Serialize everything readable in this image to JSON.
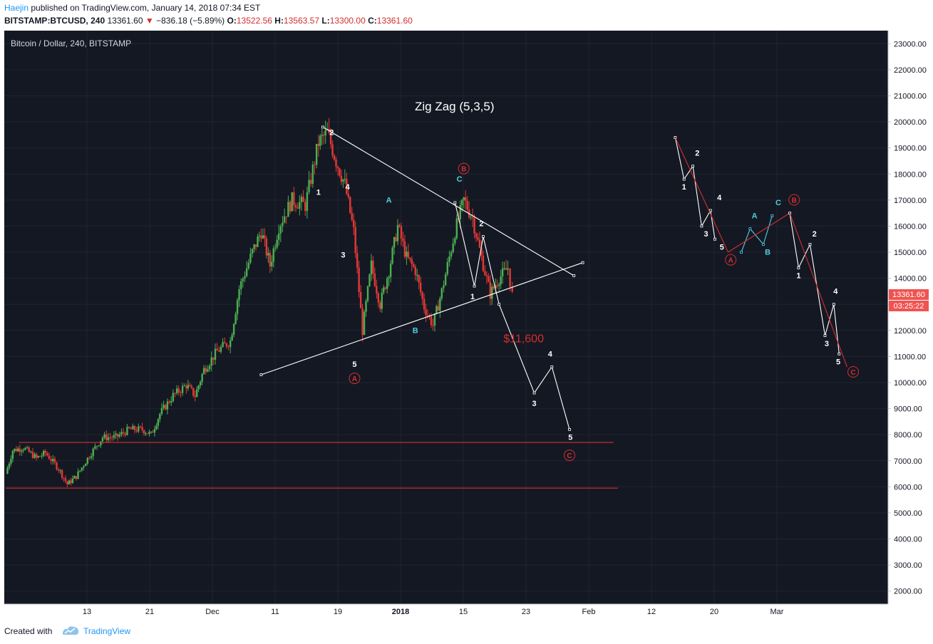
{
  "header": {
    "author": "Haejin",
    "published": "published on TradingView.com, January 14, 2018 07:34 EST",
    "symbol": "BITSTAMP:BTCUSD, 240",
    "last": "13361.60",
    "change": "−836.18 (−5.89%)",
    "open_label": "O:",
    "open": "13522.56",
    "high_label": "H:",
    "high": "13563.57",
    "low_label": "L:",
    "low": "13300.00",
    "close_label": "C:",
    "close": "13361.60"
  },
  "footer": {
    "created": "Created with",
    "brand": "TradingView"
  },
  "colors": {
    "background": "#141823",
    "up": "#4caf50",
    "down": "#e53935",
    "grid": "#1f2430",
    "wave_white": "#ffffff",
    "wave_cyan": "#4dd0e1",
    "wave_red": "#d32f2f",
    "price_badge": "#ef5350",
    "axis_text": "#131722",
    "link": "#2196f3"
  },
  "chart_data": {
    "type": "candlestick",
    "title": "Bitcoin / Dollar, 240, BITSTAMP",
    "annotation_title": "Zig Zag (5,3,5)",
    "x_axis_ticks": [
      "13",
      "21",
      "Dec",
      "11",
      "19",
      "2018",
      "15",
      "23",
      "Feb",
      "12",
      "20",
      "Mar"
    ],
    "y_axis_ticks": [
      2000,
      3000,
      4000,
      5000,
      6000,
      7000,
      8000,
      9000,
      10000,
      11000,
      12000,
      13000,
      14000,
      15000,
      16000,
      17000,
      18000,
      19000,
      20000,
      21000,
      22000,
      23000
    ],
    "y_range": [
      1500,
      23500
    ],
    "last_price": "13361.60",
    "countdown": "03:25:22",
    "price_annotation": "$11,600",
    "price_path": [
      [
        0,
        6500
      ],
      [
        0.8,
        7400
      ],
      [
        2,
        7500
      ],
      [
        3.5,
        7100
      ],
      [
        4.5,
        7300
      ],
      [
        6,
        6700
      ],
      [
        7,
        6100
      ],
      [
        8,
        6400
      ],
      [
        9.5,
        7200
      ],
      [
        11,
        7900
      ],
      [
        12.5,
        7900
      ],
      [
        14,
        8200
      ],
      [
        15.5,
        8200
      ],
      [
        16.5,
        8000
      ],
      [
        17.5,
        8800
      ],
      [
        19,
        9500
      ],
      [
        20.5,
        9900
      ],
      [
        21.5,
        9500
      ],
      [
        22.5,
        10500
      ],
      [
        24,
        11200
      ],
      [
        25.5,
        11600
      ],
      [
        26.5,
        13600
      ],
      [
        28,
        15000
      ],
      [
        29,
        15800
      ],
      [
        30,
        14500
      ],
      [
        31,
        16000
      ],
      [
        32.5,
        17000
      ],
      [
        34,
        16800
      ],
      [
        35.5,
        19200
      ],
      [
        36.5,
        19600
      ],
      [
        37.5,
        18500
      ],
      [
        38.5,
        17600
      ],
      [
        39.5,
        15800
      ],
      [
        40.5,
        12000
      ],
      [
        41.5,
        14500
      ],
      [
        42.5,
        13000
      ],
      [
        43.5,
        14300
      ],
      [
        44.5,
        16000
      ],
      [
        45.5,
        14800
      ],
      [
        46.5,
        14300
      ],
      [
        47.5,
        12900
      ],
      [
        48.5,
        12200
      ],
      [
        49.5,
        13500
      ],
      [
        51,
        15800
      ],
      [
        52,
        17000
      ],
      [
        53,
        16300
      ],
      [
        54,
        14800
      ],
      [
        55,
        13400
      ],
      [
        56,
        14000
      ],
      [
        57,
        14400
      ],
      [
        57.5,
        13361
      ]
    ],
    "wave_paths": [
      {
        "color": "white",
        "points": [
          [
            36,
            19800
          ],
          [
            64.5,
            14100
          ]
        ]
      },
      {
        "color": "white",
        "points": [
          [
            29,
            10300
          ],
          [
            65.5,
            14600
          ]
        ]
      },
      {
        "color": "white",
        "points": [
          [
            51,
            16900
          ],
          [
            53.2,
            13700
          ],
          [
            54.2,
            15600
          ],
          [
            56,
            13000
          ],
          [
            60,
            9600
          ],
          [
            62,
            10600
          ],
          [
            64,
            8200
          ]
        ]
      },
      {
        "color": "red",
        "points": [
          [
            1.5,
            7700
          ],
          [
            69,
            7700
          ]
        ]
      },
      {
        "color": "red",
        "points": [
          [
            0,
            5950
          ],
          [
            69.5,
            5950
          ]
        ]
      },
      {
        "color": "white",
        "points": [
          [
            76,
            19400
          ],
          [
            77,
            17800
          ],
          [
            78,
            18300
          ],
          [
            79,
            16000
          ],
          [
            80,
            16600
          ],
          [
            80.5,
            15500
          ]
        ]
      },
      {
        "color": "red",
        "points": [
          [
            76,
            19400
          ],
          [
            82,
            15000
          ]
        ]
      },
      {
        "color": "cyan",
        "points": [
          [
            83.5,
            15000
          ],
          [
            84.5,
            15900
          ],
          [
            86,
            15300
          ],
          [
            87,
            16400
          ]
        ]
      },
      {
        "color": "red",
        "points": [
          [
            82,
            15000
          ],
          [
            89,
            16500
          ]
        ]
      },
      {
        "color": "white",
        "points": [
          [
            89,
            16500
          ],
          [
            90,
            14400
          ],
          [
            91.3,
            15300
          ],
          [
            93,
            11800
          ],
          [
            94,
            13000
          ],
          [
            94.6,
            11100
          ]
        ]
      },
      {
        "color": "red",
        "points": [
          [
            89,
            16500
          ],
          [
            95.5,
            10600
          ]
        ]
      }
    ],
    "wave_labels": [
      {
        "text": "2",
        "x": 37,
        "y": 19500,
        "color": "white",
        "circled": false
      },
      {
        "text": "1",
        "x": 35.5,
        "y": 17200,
        "color": "white",
        "circled": false
      },
      {
        "text": "4",
        "x": 38.8,
        "y": 17400,
        "color": "white",
        "circled": false
      },
      {
        "text": "3",
        "x": 38.3,
        "y": 14800,
        "color": "white",
        "circled": false
      },
      {
        "text": "5",
        "x": 39.6,
        "y": 10600,
        "color": "white",
        "circled": false
      },
      {
        "text": "A",
        "x": 39.6,
        "y": 10050,
        "color": "red",
        "circled": true
      },
      {
        "text": "A",
        "x": 43.5,
        "y": 16900,
        "color": "cyan",
        "circled": false
      },
      {
        "text": "B",
        "x": 46.5,
        "y": 11900,
        "color": "cyan",
        "circled": false
      },
      {
        "text": "C",
        "x": 51.5,
        "y": 17700,
        "color": "cyan",
        "circled": false
      },
      {
        "text": "B",
        "x": 52,
        "y": 18100,
        "color": "red",
        "circled": true
      },
      {
        "text": "1",
        "x": 53,
        "y": 13200,
        "color": "white",
        "circled": false
      },
      {
        "text": "2",
        "x": 54,
        "y": 16000,
        "color": "white",
        "circled": false
      },
      {
        "text": "3",
        "x": 60,
        "y": 9100,
        "color": "white",
        "circled": false
      },
      {
        "text": "4",
        "x": 61.8,
        "y": 11000,
        "color": "white",
        "circled": false
      },
      {
        "text": "5",
        "x": 64.1,
        "y": 7800,
        "color": "white",
        "circled": false
      },
      {
        "text": "C",
        "x": 64,
        "y": 7100,
        "color": "red",
        "circled": true
      },
      {
        "text": "1",
        "x": 77,
        "y": 17400,
        "color": "white",
        "circled": false
      },
      {
        "text": "2",
        "x": 78.5,
        "y": 18700,
        "color": "white",
        "circled": false
      },
      {
        "text": "3",
        "x": 79.5,
        "y": 15600,
        "color": "white",
        "circled": false
      },
      {
        "text": "4",
        "x": 81,
        "y": 17000,
        "color": "white",
        "circled": false
      },
      {
        "text": "5",
        "x": 81.3,
        "y": 15100,
        "color": "white",
        "circled": false
      },
      {
        "text": "A",
        "x": 82.3,
        "y": 14600,
        "color": "red",
        "circled": true
      },
      {
        "text": "A",
        "x": 85,
        "y": 16300,
        "color": "cyan",
        "circled": false
      },
      {
        "text": "B",
        "x": 86.5,
        "y": 14900,
        "color": "cyan",
        "circled": false
      },
      {
        "text": "C",
        "x": 87.7,
        "y": 16800,
        "color": "cyan",
        "circled": false
      },
      {
        "text": "B",
        "x": 89.5,
        "y": 16900,
        "color": "red",
        "circled": true
      },
      {
        "text": "1",
        "x": 90,
        "y": 14000,
        "color": "white",
        "circled": false
      },
      {
        "text": "2",
        "x": 91.8,
        "y": 15600,
        "color": "white",
        "circled": false
      },
      {
        "text": "3",
        "x": 93.2,
        "y": 11400,
        "color": "white",
        "circled": false
      },
      {
        "text": "4",
        "x": 94.2,
        "y": 13400,
        "color": "white",
        "circled": false
      },
      {
        "text": "5",
        "x": 94.5,
        "y": 10700,
        "color": "white",
        "circled": false
      },
      {
        "text": "C",
        "x": 96.2,
        "y": 10300,
        "color": "red",
        "circled": true
      }
    ]
  }
}
